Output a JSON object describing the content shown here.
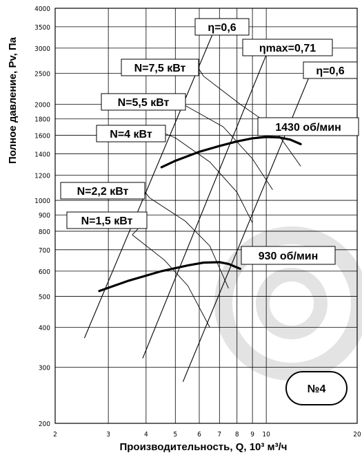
{
  "chart_data": {
    "type": "line",
    "xlabel": "Производительность, Q, 10³ м³/ч",
    "ylabel": "Полное давление, Pv, Па",
    "x_scale": "log",
    "y_scale": "log",
    "xlim": [
      2,
      20
    ],
    "ylim": [
      200,
      4000
    ],
    "x_ticks": [
      2,
      3,
      4,
      5,
      6,
      7,
      8,
      9,
      10,
      20
    ],
    "y_ticks": [
      200,
      300,
      400,
      500,
      600,
      700,
      800,
      900,
      1000,
      1200,
      1400,
      1600,
      1800,
      2000,
      2500,
      3000,
      3500,
      4000
    ],
    "grid": true,
    "series": [
      {
        "name": "1430 об/мин",
        "points": [
          [
            4.5,
            1270
          ],
          [
            5.0,
            1330
          ],
          [
            6.0,
            1420
          ],
          [
            7.0,
            1480
          ],
          [
            8.0,
            1530
          ],
          [
            9.0,
            1565
          ],
          [
            10.0,
            1580
          ],
          [
            11.0,
            1575
          ],
          [
            12.0,
            1550
          ],
          [
            13.0,
            1500
          ]
        ]
      },
      {
        "name": "930 об/мин",
        "points": [
          [
            2.8,
            520
          ],
          [
            3.5,
            560
          ],
          [
            4.5,
            600
          ],
          [
            5.5,
            625
          ],
          [
            6.2,
            638
          ],
          [
            7.0,
            640
          ],
          [
            7.5,
            632
          ],
          [
            8.2,
            610
          ]
        ]
      }
    ],
    "efficiency_lines": [
      {
        "label": "η=0,6",
        "points": [
          [
            2.5,
            370
          ],
          [
            6.8,
            3500
          ]
        ]
      },
      {
        "label": "ηmax=0,71",
        "points": [
          [
            3.9,
            320
          ],
          [
            10.5,
            3200
          ]
        ]
      },
      {
        "label": "η=0,6",
        "points": [
          [
            5.3,
            270
          ],
          [
            14.5,
            2700
          ]
        ]
      }
    ],
    "power_curves": [
      {
        "label": "N=7,5 кВт",
        "points": [
          [
            6.2,
            2450
          ],
          [
            8.2,
            2000
          ],
          [
            10.5,
            1700
          ],
          [
            13.0,
            1280
          ]
        ]
      },
      {
        "label": "N=5,5 кВт",
        "points": [
          [
            5.3,
            2000
          ],
          [
            7.2,
            1700
          ],
          [
            9.0,
            1350
          ],
          [
            10.5,
            1080
          ]
        ]
      },
      {
        "label": "N=4 кВт",
        "points": [
          [
            5.0,
            1570
          ],
          [
            6.5,
            1320
          ],
          [
            8.0,
            1060
          ],
          [
            9.0,
            850
          ]
        ]
      },
      {
        "label": "N=2,2 кВт",
        "points": [
          [
            4.1,
            1020
          ],
          [
            5.4,
            860
          ],
          [
            6.5,
            720
          ],
          [
            7.5,
            530
          ]
        ]
      },
      {
        "label": "N=1,5 кВт",
        "points": [
          [
            3.6,
            780
          ],
          [
            4.6,
            650
          ],
          [
            5.5,
            540
          ],
          [
            6.5,
            400
          ]
        ]
      }
    ],
    "badge": "№4"
  }
}
